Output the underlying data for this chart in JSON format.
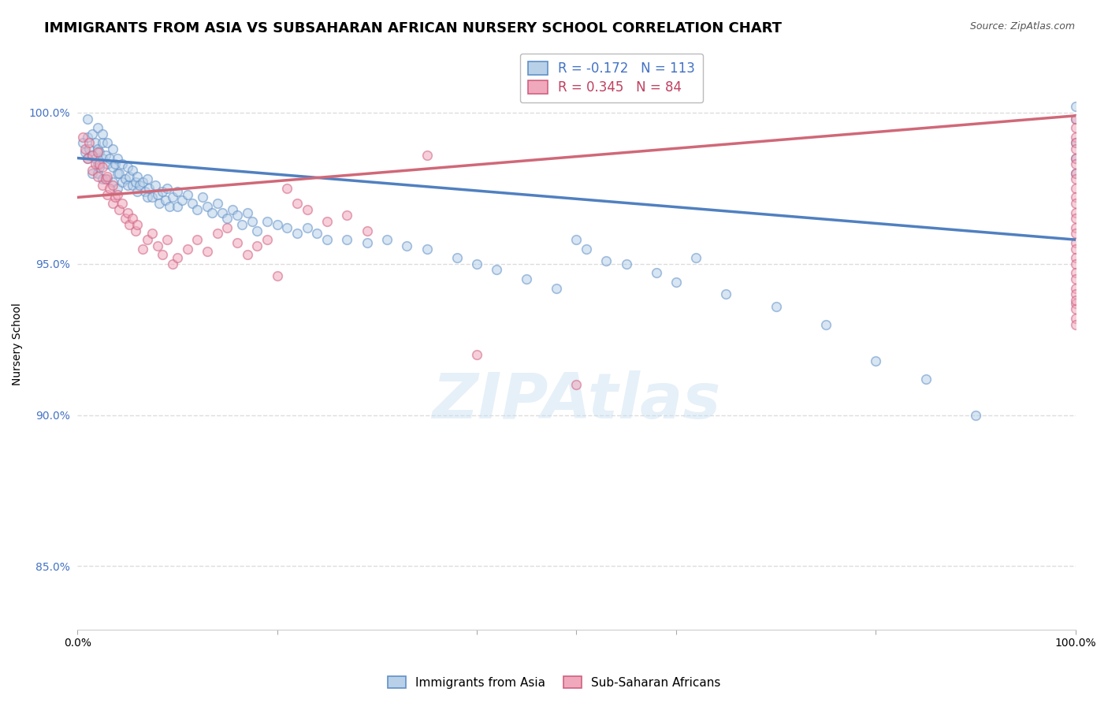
{
  "title": "IMMIGRANTS FROM ASIA VS SUBSAHARAN AFRICAN NURSERY SCHOOL CORRELATION CHART",
  "source": "Source: ZipAtlas.com",
  "ylabel": "Nursery School",
  "legend_label_blue": "Immigrants from Asia",
  "legend_label_pink": "Sub-Saharan Africans",
  "r_blue": -0.172,
  "n_blue": 113,
  "r_pink": 0.345,
  "n_pink": 84,
  "color_blue_face": "#b8d0e8",
  "color_pink_face": "#f0a8bc",
  "color_blue_edge": "#6090c8",
  "color_pink_edge": "#d06080",
  "color_blue_line": "#5080c0",
  "color_pink_line": "#d06878",
  "color_blue_text": "#4472C4",
  "color_pink_text": "#C04060",
  "xlim": [
    0.0,
    1.0
  ],
  "ylim": [
    0.829,
    1.018
  ],
  "yticks": [
    0.85,
    0.9,
    0.95,
    1.0
  ],
  "ytick_labels": [
    "85.0%",
    "90.0%",
    "95.0%",
    "100.0%"
  ],
  "xticks": [
    0.0,
    0.2,
    0.4,
    0.5,
    0.6,
    0.8,
    1.0
  ],
  "xtick_labels": [
    "0.0%",
    "",
    "",
    "",
    "",
    "",
    "100.0%"
  ],
  "watermark": "ZIPAtlas",
  "blue_scatter_x": [
    0.005,
    0.008,
    0.01,
    0.01,
    0.01,
    0.012,
    0.015,
    0.015,
    0.015,
    0.018,
    0.018,
    0.02,
    0.02,
    0.02,
    0.02,
    0.022,
    0.022,
    0.025,
    0.025,
    0.025,
    0.025,
    0.028,
    0.03,
    0.03,
    0.03,
    0.032,
    0.035,
    0.035,
    0.035,
    0.038,
    0.04,
    0.04,
    0.04,
    0.042,
    0.045,
    0.045,
    0.048,
    0.05,
    0.05,
    0.052,
    0.055,
    0.055,
    0.058,
    0.06,
    0.06,
    0.062,
    0.065,
    0.068,
    0.07,
    0.07,
    0.072,
    0.075,
    0.078,
    0.08,
    0.082,
    0.085,
    0.088,
    0.09,
    0.092,
    0.095,
    0.1,
    0.1,
    0.105,
    0.11,
    0.115,
    0.12,
    0.125,
    0.13,
    0.135,
    0.14,
    0.145,
    0.15,
    0.155,
    0.16,
    0.165,
    0.17,
    0.175,
    0.18,
    0.19,
    0.2,
    0.21,
    0.22,
    0.23,
    0.24,
    0.25,
    0.27,
    0.29,
    0.31,
    0.33,
    0.35,
    0.38,
    0.4,
    0.42,
    0.45,
    0.48,
    0.5,
    0.51,
    0.53,
    0.55,
    0.58,
    0.6,
    0.62,
    0.65,
    0.7,
    0.75,
    0.8,
    0.85,
    0.9,
    1.0,
    1.0,
    1.0,
    1.0,
    1.0
  ],
  "blue_scatter_y": [
    0.99,
    0.987,
    0.985,
    0.992,
    0.998,
    0.988,
    0.993,
    0.986,
    0.98,
    0.99,
    0.985,
    0.988,
    0.983,
    0.995,
    0.98,
    0.987,
    0.982,
    0.99,
    0.985,
    0.978,
    0.993,
    0.986,
    0.983,
    0.978,
    0.99,
    0.985,
    0.982,
    0.977,
    0.988,
    0.983,
    0.98,
    0.975,
    0.985,
    0.98,
    0.977,
    0.983,
    0.978,
    0.982,
    0.976,
    0.979,
    0.976,
    0.981,
    0.977,
    0.979,
    0.974,
    0.976,
    0.977,
    0.974,
    0.978,
    0.972,
    0.975,
    0.972,
    0.976,
    0.973,
    0.97,
    0.974,
    0.971,
    0.975,
    0.969,
    0.972,
    0.974,
    0.969,
    0.971,
    0.973,
    0.97,
    0.968,
    0.972,
    0.969,
    0.967,
    0.97,
    0.967,
    0.965,
    0.968,
    0.966,
    0.963,
    0.967,
    0.964,
    0.961,
    0.964,
    0.963,
    0.962,
    0.96,
    0.962,
    0.96,
    0.958,
    0.958,
    0.957,
    0.958,
    0.956,
    0.955,
    0.952,
    0.95,
    0.948,
    0.945,
    0.942,
    0.958,
    0.955,
    0.951,
    0.95,
    0.947,
    0.944,
    0.952,
    0.94,
    0.936,
    0.93,
    0.918,
    0.912,
    0.9,
    0.998,
    0.99,
    0.985,
    0.98,
    1.002
  ],
  "pink_scatter_x": [
    0.005,
    0.008,
    0.01,
    0.012,
    0.015,
    0.015,
    0.018,
    0.02,
    0.02,
    0.022,
    0.025,
    0.025,
    0.028,
    0.03,
    0.03,
    0.032,
    0.035,
    0.035,
    0.038,
    0.04,
    0.042,
    0.045,
    0.048,
    0.05,
    0.052,
    0.055,
    0.058,
    0.06,
    0.065,
    0.07,
    0.075,
    0.08,
    0.085,
    0.09,
    0.095,
    0.1,
    0.11,
    0.12,
    0.13,
    0.14,
    0.15,
    0.16,
    0.17,
    0.18,
    0.19,
    0.2,
    0.21,
    0.22,
    0.23,
    0.25,
    0.27,
    0.29,
    0.35,
    0.4,
    0.5,
    1.0,
    1.0,
    1.0,
    1.0,
    1.0,
    1.0,
    1.0,
    1.0,
    1.0,
    1.0,
    1.0,
    1.0,
    1.0,
    1.0,
    1.0,
    1.0,
    1.0,
    1.0,
    1.0,
    1.0,
    1.0,
    1.0,
    1.0,
    1.0,
    1.0,
    1.0,
    1.0,
    1.0,
    1.0
  ],
  "pink_scatter_y": [
    0.992,
    0.988,
    0.985,
    0.99,
    0.986,
    0.981,
    0.983,
    0.987,
    0.979,
    0.983,
    0.976,
    0.982,
    0.978,
    0.979,
    0.973,
    0.975,
    0.976,
    0.97,
    0.972,
    0.973,
    0.968,
    0.97,
    0.965,
    0.967,
    0.963,
    0.965,
    0.961,
    0.963,
    0.955,
    0.958,
    0.96,
    0.956,
    0.953,
    0.958,
    0.95,
    0.952,
    0.955,
    0.958,
    0.954,
    0.96,
    0.962,
    0.957,
    0.953,
    0.956,
    0.958,
    0.946,
    0.975,
    0.97,
    0.968,
    0.964,
    0.966,
    0.961,
    0.986,
    0.92,
    0.91,
    0.998,
    0.995,
    0.992,
    0.99,
    0.988,
    0.985,
    0.983,
    0.98,
    0.978,
    0.975,
    0.972,
    0.97,
    0.967,
    0.965,
    0.962,
    0.96,
    0.957,
    0.955,
    0.952,
    0.95,
    0.947,
    0.945,
    0.942,
    0.94,
    0.937,
    0.935,
    0.932,
    0.93,
    0.938
  ],
  "blue_line_y_start": 0.985,
  "blue_line_y_end": 0.958,
  "pink_line_y_start": 0.972,
  "pink_line_y_end": 0.999,
  "background_color": "#ffffff",
  "grid_color": "#dddddd",
  "title_fontsize": 13,
  "axis_fontsize": 10,
  "legend_fontsize": 12,
  "scatter_size": 70,
  "scatter_alpha": 0.55,
  "scatter_lw": 1.2
}
